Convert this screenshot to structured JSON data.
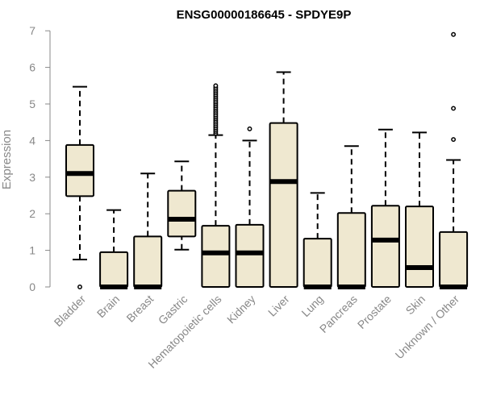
{
  "chart_data": {
    "type": "boxplot",
    "title": "ENSG00000186645 - SPDYE9P",
    "xlabel": "",
    "ylabel": "Expression",
    "ylim": [
      0,
      7
    ],
    "yticks": [
      0,
      1,
      2,
      3,
      4,
      5,
      6,
      7
    ],
    "box_color": "#efe8d0",
    "categories": [
      "Bladder",
      "Brain",
      "Breast",
      "Gastric",
      "Hematopoietic cells",
      "Kidney",
      "Liver",
      "Lung",
      "Pancreas",
      "Prostate",
      "Skin",
      "Unknown / Other"
    ],
    "boxes": [
      {
        "name": "Bladder",
        "whisker_low": 0.75,
        "q1": 2.48,
        "median": 3.1,
        "q3": 3.88,
        "whisker_high": 5.47,
        "outliers": [
          0
        ]
      },
      {
        "name": "Brain",
        "whisker_low": 0,
        "q1": 0,
        "median": 0,
        "q3": 0.95,
        "whisker_high": 2.1,
        "outliers": []
      },
      {
        "name": "Breast",
        "whisker_low": 0,
        "q1": 0,
        "median": 0,
        "q3": 1.38,
        "whisker_high": 3.1,
        "outliers": []
      },
      {
        "name": "Gastric",
        "whisker_low": 1.02,
        "q1": 1.38,
        "median": 1.85,
        "q3": 2.63,
        "whisker_high": 3.43,
        "outliers": []
      },
      {
        "name": "Hematopoietic cells",
        "whisker_low": 0,
        "q1": 0,
        "median": 0.93,
        "q3": 1.67,
        "whisker_high": 4.15,
        "outliers": [
          4.2,
          4.25,
          4.3,
          4.35,
          4.4,
          4.45,
          4.5,
          4.55,
          4.6,
          4.65,
          4.7,
          4.75,
          4.8,
          4.85,
          4.9,
          4.95,
          5.0,
          5.05,
          5.1,
          5.15,
          5.2,
          5.25,
          5.3,
          5.35,
          5.4,
          5.45,
          5.5
        ]
      },
      {
        "name": "Kidney",
        "whisker_low": 0,
        "q1": 0,
        "median": 0.93,
        "q3": 1.7,
        "whisker_high": 4.0,
        "outliers": [
          4.32
        ]
      },
      {
        "name": "Liver",
        "whisker_low": 0,
        "q1": 0,
        "median": 2.88,
        "q3": 4.48,
        "whisker_high": 5.87,
        "outliers": []
      },
      {
        "name": "Lung",
        "whisker_low": 0,
        "q1": 0,
        "median": 0,
        "q3": 1.32,
        "whisker_high": 2.57,
        "outliers": []
      },
      {
        "name": "Pancreas",
        "whisker_low": 0,
        "q1": 0,
        "median": 0,
        "q3": 2.02,
        "whisker_high": 3.85,
        "outliers": []
      },
      {
        "name": "Prostate",
        "whisker_low": 0,
        "q1": 0,
        "median": 1.28,
        "q3": 2.22,
        "whisker_high": 4.3,
        "outliers": []
      },
      {
        "name": "Skin",
        "whisker_low": 0,
        "q1": 0,
        "median": 0.53,
        "q3": 2.2,
        "whisker_high": 4.22,
        "outliers": []
      },
      {
        "name": "Unknown / Other",
        "whisker_low": 0,
        "q1": 0,
        "median": 0,
        "q3": 1.5,
        "whisker_high": 3.47,
        "outliers": [
          4.03,
          4.88,
          6.9
        ]
      }
    ]
  }
}
